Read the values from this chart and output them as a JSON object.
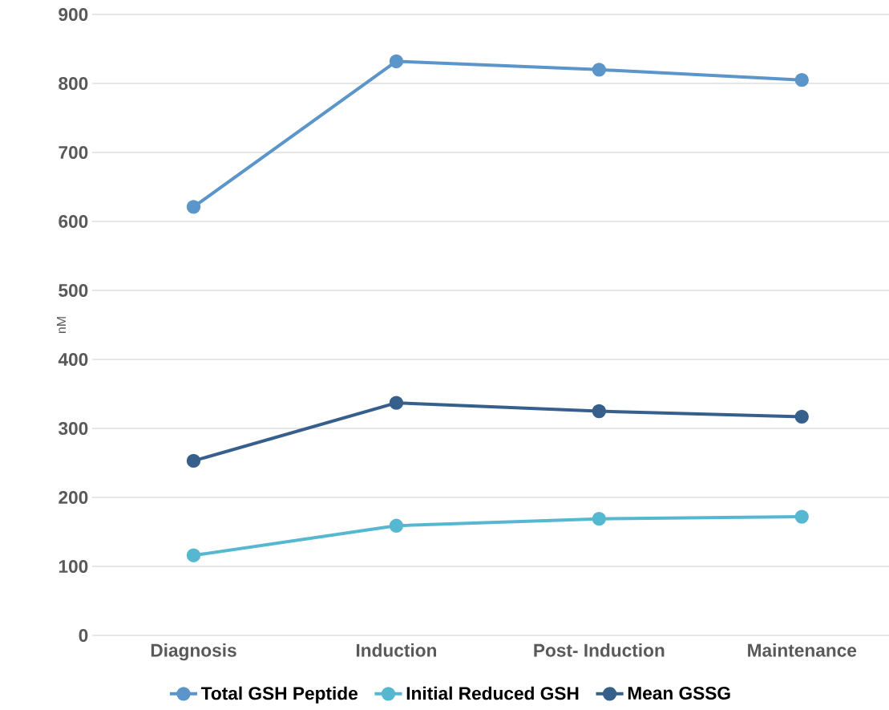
{
  "chart_data": {
    "type": "line",
    "ylabel": "nM",
    "categories": [
      "Diagnosis",
      "Induction",
      "Post- Induction",
      "Maintenance"
    ],
    "series": [
      {
        "name": "Total GSH Peptide",
        "color": "#5b95c9",
        "values": [
          621,
          832,
          820,
          805
        ]
      },
      {
        "name": "Initial Reduced GSH",
        "color": "#56b8d0",
        "values": [
          116,
          159,
          169,
          172
        ]
      },
      {
        "name": "Mean GSSG",
        "color": "#365f8b",
        "values": [
          253,
          337,
          325,
          317
        ]
      }
    ],
    "ylim": [
      0,
      900
    ],
    "yticks": [
      0,
      100,
      200,
      300,
      400,
      500,
      600,
      700,
      800,
      900
    ],
    "grid": "y",
    "legend": "bottom",
    "marker": "circle",
    "line_style": "solid"
  }
}
